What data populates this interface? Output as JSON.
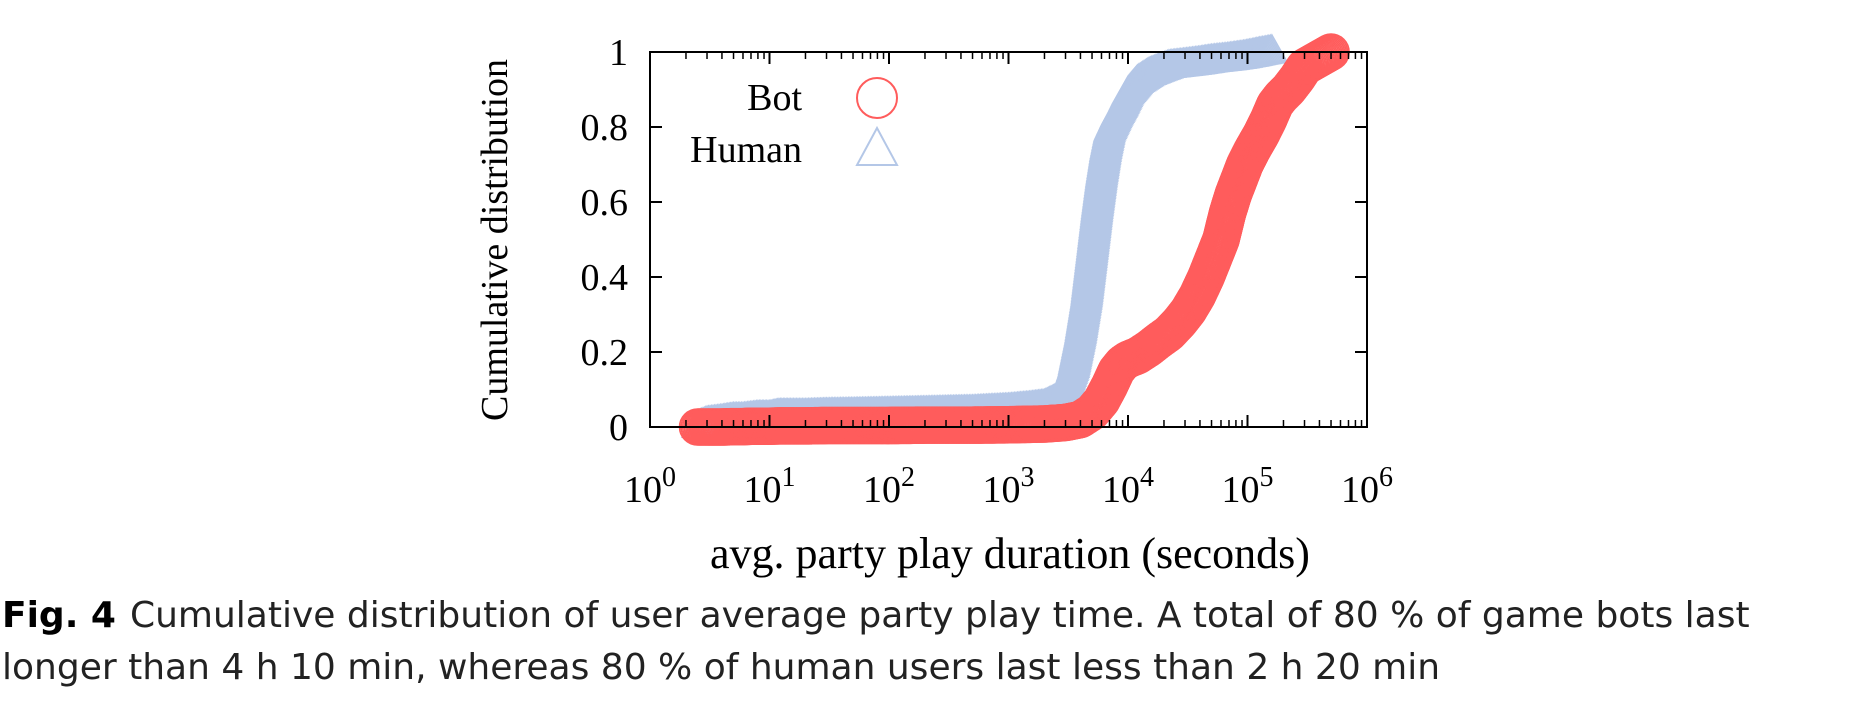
{
  "chart_data": {
    "type": "scatter",
    "xlabel": "avg. party play duration (seconds)",
    "ylabel": "Cumulative distribution",
    "x_scale": "log",
    "xlim": [
      1,
      1000000
    ],
    "ylim": [
      0,
      1
    ],
    "x_ticks": [
      {
        "value": 1,
        "base": "10",
        "exp": "0"
      },
      {
        "value": 10,
        "base": "10",
        "exp": "1"
      },
      {
        "value": 100,
        "base": "10",
        "exp": "2"
      },
      {
        "value": 1000,
        "base": "10",
        "exp": "3"
      },
      {
        "value": 10000,
        "base": "10",
        "exp": "4"
      },
      {
        "value": 100000,
        "base": "10",
        "exp": "5"
      },
      {
        "value": 1000000,
        "base": "10",
        "exp": "6"
      }
    ],
    "y_ticks": [
      {
        "value": 0,
        "label": "0"
      },
      {
        "value": 0.2,
        "label": "0.2"
      },
      {
        "value": 0.4,
        "label": "0.4"
      },
      {
        "value": 0.6,
        "label": "0.6"
      },
      {
        "value": 0.8,
        "label": "0.8"
      },
      {
        "value": 1,
        "label": "1"
      }
    ],
    "legend_position": "top-left",
    "grid": false,
    "series": [
      {
        "name": "Bot",
        "marker": "circle",
        "color": "#ff5c5c",
        "points": [
          [
            2.5,
            0.0
          ],
          [
            3,
            0.0
          ],
          [
            3.5,
            0.0
          ],
          [
            4,
            0.0
          ],
          [
            5,
            0.001
          ],
          [
            6,
            0.001
          ],
          [
            7,
            0.002
          ],
          [
            8,
            0.002
          ],
          [
            10,
            0.002
          ],
          [
            12,
            0.003
          ],
          [
            15,
            0.003
          ],
          [
            20,
            0.003
          ],
          [
            30,
            0.004
          ],
          [
            50,
            0.004
          ],
          [
            100,
            0.004
          ],
          [
            200,
            0.005
          ],
          [
            500,
            0.005
          ],
          [
            1000,
            0.006
          ],
          [
            2000,
            0.008
          ],
          [
            3000,
            0.012
          ],
          [
            4000,
            0.02
          ],
          [
            5000,
            0.04
          ],
          [
            6000,
            0.07
          ],
          [
            7000,
            0.11
          ],
          [
            8000,
            0.15
          ],
          [
            9000,
            0.17
          ],
          [
            10000,
            0.18
          ],
          [
            12000,
            0.19
          ],
          [
            15000,
            0.21
          ],
          [
            18000,
            0.23
          ],
          [
            22000,
            0.25
          ],
          [
            27000,
            0.28
          ],
          [
            32000,
            0.31
          ],
          [
            38000,
            0.35
          ],
          [
            45000,
            0.4
          ],
          [
            52000,
            0.45
          ],
          [
            60000,
            0.5
          ],
          [
            68000,
            0.57
          ],
          [
            76000,
            0.62
          ],
          [
            85000,
            0.66
          ],
          [
            95000,
            0.7
          ],
          [
            110000,
            0.74
          ],
          [
            130000,
            0.78
          ],
          [
            150000,
            0.82
          ],
          [
            170000,
            0.86
          ],
          [
            190000,
            0.88
          ],
          [
            220000,
            0.9
          ],
          [
            260000,
            0.93
          ],
          [
            300000,
            0.96
          ],
          [
            500000,
            1.0
          ]
        ]
      },
      {
        "name": "Human",
        "marker": "triangle",
        "color": "#b4c7e7",
        "points": [
          [
            2.5,
            0.0
          ],
          [
            3,
            0.01
          ],
          [
            4,
            0.015
          ],
          [
            5,
            0.02
          ],
          [
            6,
            0.02
          ],
          [
            8,
            0.025
          ],
          [
            10,
            0.025
          ],
          [
            12,
            0.03
          ],
          [
            15,
            0.03
          ],
          [
            20,
            0.03
          ],
          [
            30,
            0.032
          ],
          [
            50,
            0.033
          ],
          [
            100,
            0.035
          ],
          [
            200,
            0.037
          ],
          [
            500,
            0.04
          ],
          [
            1000,
            0.045
          ],
          [
            1500,
            0.05
          ],
          [
            2000,
            0.055
          ],
          [
            2500,
            0.07
          ],
          [
            3000,
            0.1
          ],
          [
            3500,
            0.16
          ],
          [
            4000,
            0.25
          ],
          [
            4500,
            0.35
          ],
          [
            5000,
            0.47
          ],
          [
            5500,
            0.58
          ],
          [
            6000,
            0.67
          ],
          [
            6500,
            0.74
          ],
          [
            7000,
            0.79
          ],
          [
            8000,
            0.83
          ],
          [
            9000,
            0.86
          ],
          [
            10000,
            0.89
          ],
          [
            12000,
            0.92
          ],
          [
            15000,
            0.94
          ],
          [
            18000,
            0.95
          ],
          [
            22000,
            0.96
          ],
          [
            30000,
            0.965
          ],
          [
            40000,
            0.97
          ],
          [
            50000,
            0.975
          ],
          [
            70000,
            0.98
          ],
          [
            90000,
            0.985
          ],
          [
            110000,
            0.99
          ],
          [
            130000,
            0.995
          ],
          [
            160000,
            1.0
          ]
        ]
      }
    ]
  },
  "caption": {
    "label": "Fig. 4",
    "text": "Cumulative distribution of user average party play time. A total of 80 % of game bots last longer than 4 h 10 min, whereas 80 % of human users last less than 2  h 20 min"
  }
}
